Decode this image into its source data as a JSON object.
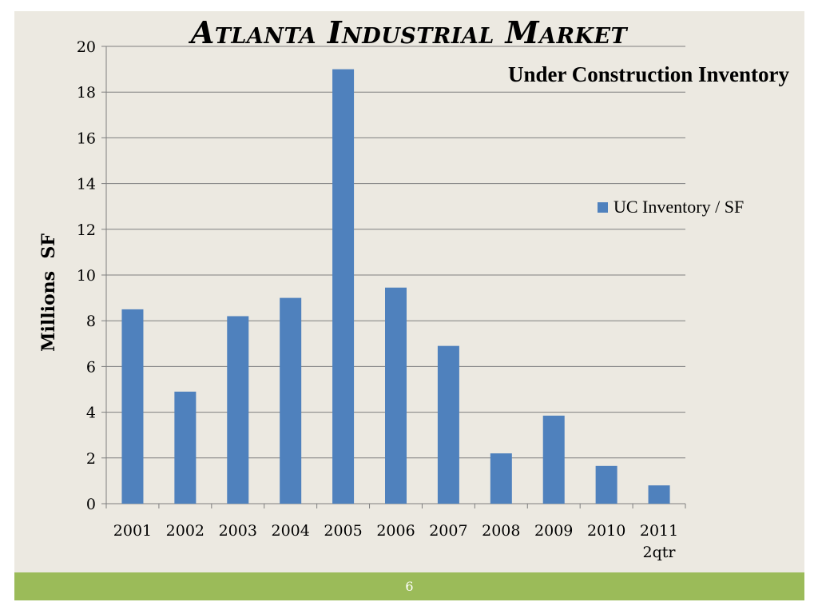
{
  "slide": {
    "title": "Atlanta Industrial Market",
    "page_number": "6"
  },
  "chart_data": {
    "type": "bar",
    "title": "Under Construction Inventory",
    "ylabel": "Millions  SF",
    "xlabel": "",
    "categories": [
      "2001",
      "2002",
      "2003",
      "2004",
      "2005",
      "2006",
      "2007",
      "2008",
      "2009",
      "2010",
      "2011\n2qtr"
    ],
    "series": [
      {
        "name": "UC Inventory / SF",
        "color": "#4f81bd",
        "values": [
          8.5,
          4.9,
          8.2,
          9.0,
          19.0,
          9.45,
          6.9,
          2.2,
          3.85,
          1.65,
          0.8
        ]
      }
    ],
    "ylim": [
      0,
      20
    ],
    "yticks": [
      0,
      2,
      4,
      6,
      8,
      10,
      12,
      14,
      16,
      18,
      20
    ],
    "grid": true,
    "legend_position": "right"
  }
}
